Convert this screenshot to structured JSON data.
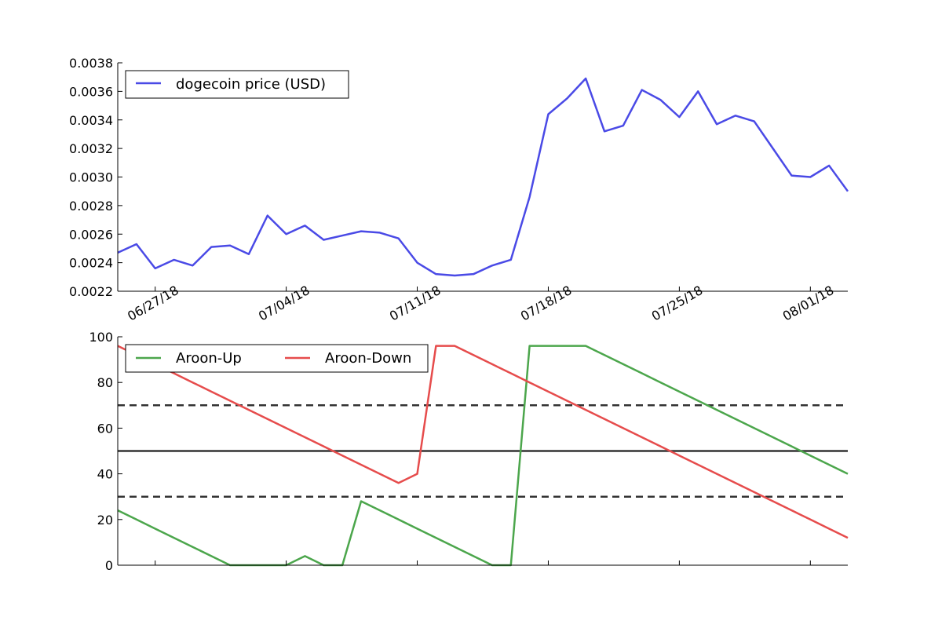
{
  "chart_data": [
    {
      "type": "line",
      "title": "",
      "xlabel": "",
      "ylabel": "",
      "ylim": [
        0.0022,
        0.0038
      ],
      "yticks": [
        "0.0022",
        "0.0024",
        "0.0026",
        "0.0028",
        "0.0030",
        "0.0032",
        "0.0034",
        "0.0036",
        "0.0038"
      ],
      "x_dates": [
        "06/25/18",
        "06/26/18",
        "06/27/18",
        "06/28/18",
        "06/29/18",
        "06/30/18",
        "07/01/18",
        "07/02/18",
        "07/03/18",
        "07/04/18",
        "07/05/18",
        "07/06/18",
        "07/07/18",
        "07/08/18",
        "07/09/18",
        "07/10/18",
        "07/11/18",
        "07/12/18",
        "07/13/18",
        "07/14/18",
        "07/15/18",
        "07/16/18",
        "07/17/18",
        "07/18/18",
        "07/19/18",
        "07/20/18",
        "07/21/18",
        "07/22/18",
        "07/23/18",
        "07/24/18",
        "07/25/18",
        "07/26/18",
        "07/27/18",
        "07/28/18",
        "07/29/18",
        "07/30/18",
        "07/31/18",
        "08/01/18",
        "08/02/18",
        "08/03/18"
      ],
      "xticks": [
        "06/27/18",
        "07/04/18",
        "07/11/18",
        "07/18/18",
        "07/25/18",
        "08/01/18"
      ],
      "legend_position": "upper-left",
      "grid": false,
      "series": [
        {
          "name": "dogecoin price (USD)",
          "color": "#4a4ae6",
          "values": [
            0.00247,
            0.00253,
            0.00236,
            0.00242,
            0.00238,
            0.00251,
            0.00252,
            0.00246,
            0.00273,
            0.0026,
            0.00266,
            0.00256,
            0.00259,
            0.00262,
            0.00261,
            0.00257,
            0.0024,
            0.00232,
            0.00231,
            0.00232,
            0.00238,
            0.00242,
            0.00286,
            0.00344,
            0.00355,
            0.00369,
            0.00332,
            0.00336,
            0.00361,
            0.00354,
            0.00342,
            0.0036,
            0.00337,
            0.00343,
            0.00339,
            0.0032,
            0.00301,
            0.003,
            0.00308,
            0.0029
          ]
        }
      ]
    },
    {
      "type": "line",
      "title": "",
      "xlabel": "",
      "ylabel": "",
      "ylim": [
        0,
        100
      ],
      "yticks": [
        "0",
        "20",
        "40",
        "60",
        "80",
        "100"
      ],
      "legend_position": "upper-left",
      "grid": false,
      "reference_lines": [
        {
          "y": 70,
          "style": "dashed",
          "color": "#333333"
        },
        {
          "y": 50,
          "style": "solid",
          "color": "#333333"
        },
        {
          "y": 30,
          "style": "dashed",
          "color": "#333333"
        }
      ],
      "series": [
        {
          "name": "Aroon-Up",
          "color": "#4ca64c",
          "values": [
            24,
            20,
            16,
            12,
            8,
            4,
            0,
            0,
            0,
            0,
            4,
            0,
            0,
            28,
            24,
            20,
            16,
            12,
            8,
            4,
            0,
            0,
            96,
            96,
            96,
            96,
            92,
            88,
            84,
            80,
            76,
            72,
            68,
            64,
            60,
            56,
            52,
            48,
            44,
            40
          ]
        },
        {
          "name": "Aroon-Down",
          "color": "#e64c4c",
          "values": [
            96,
            92,
            88,
            84,
            80,
            76,
            72,
            68,
            64,
            60,
            56,
            52,
            48,
            44,
            40,
            36,
            40,
            96,
            96,
            92,
            88,
            84,
            80,
            76,
            72,
            68,
            64,
            60,
            56,
            52,
            48,
            44,
            40,
            36,
            32,
            28,
            24,
            20,
            16,
            12
          ]
        }
      ]
    }
  ]
}
